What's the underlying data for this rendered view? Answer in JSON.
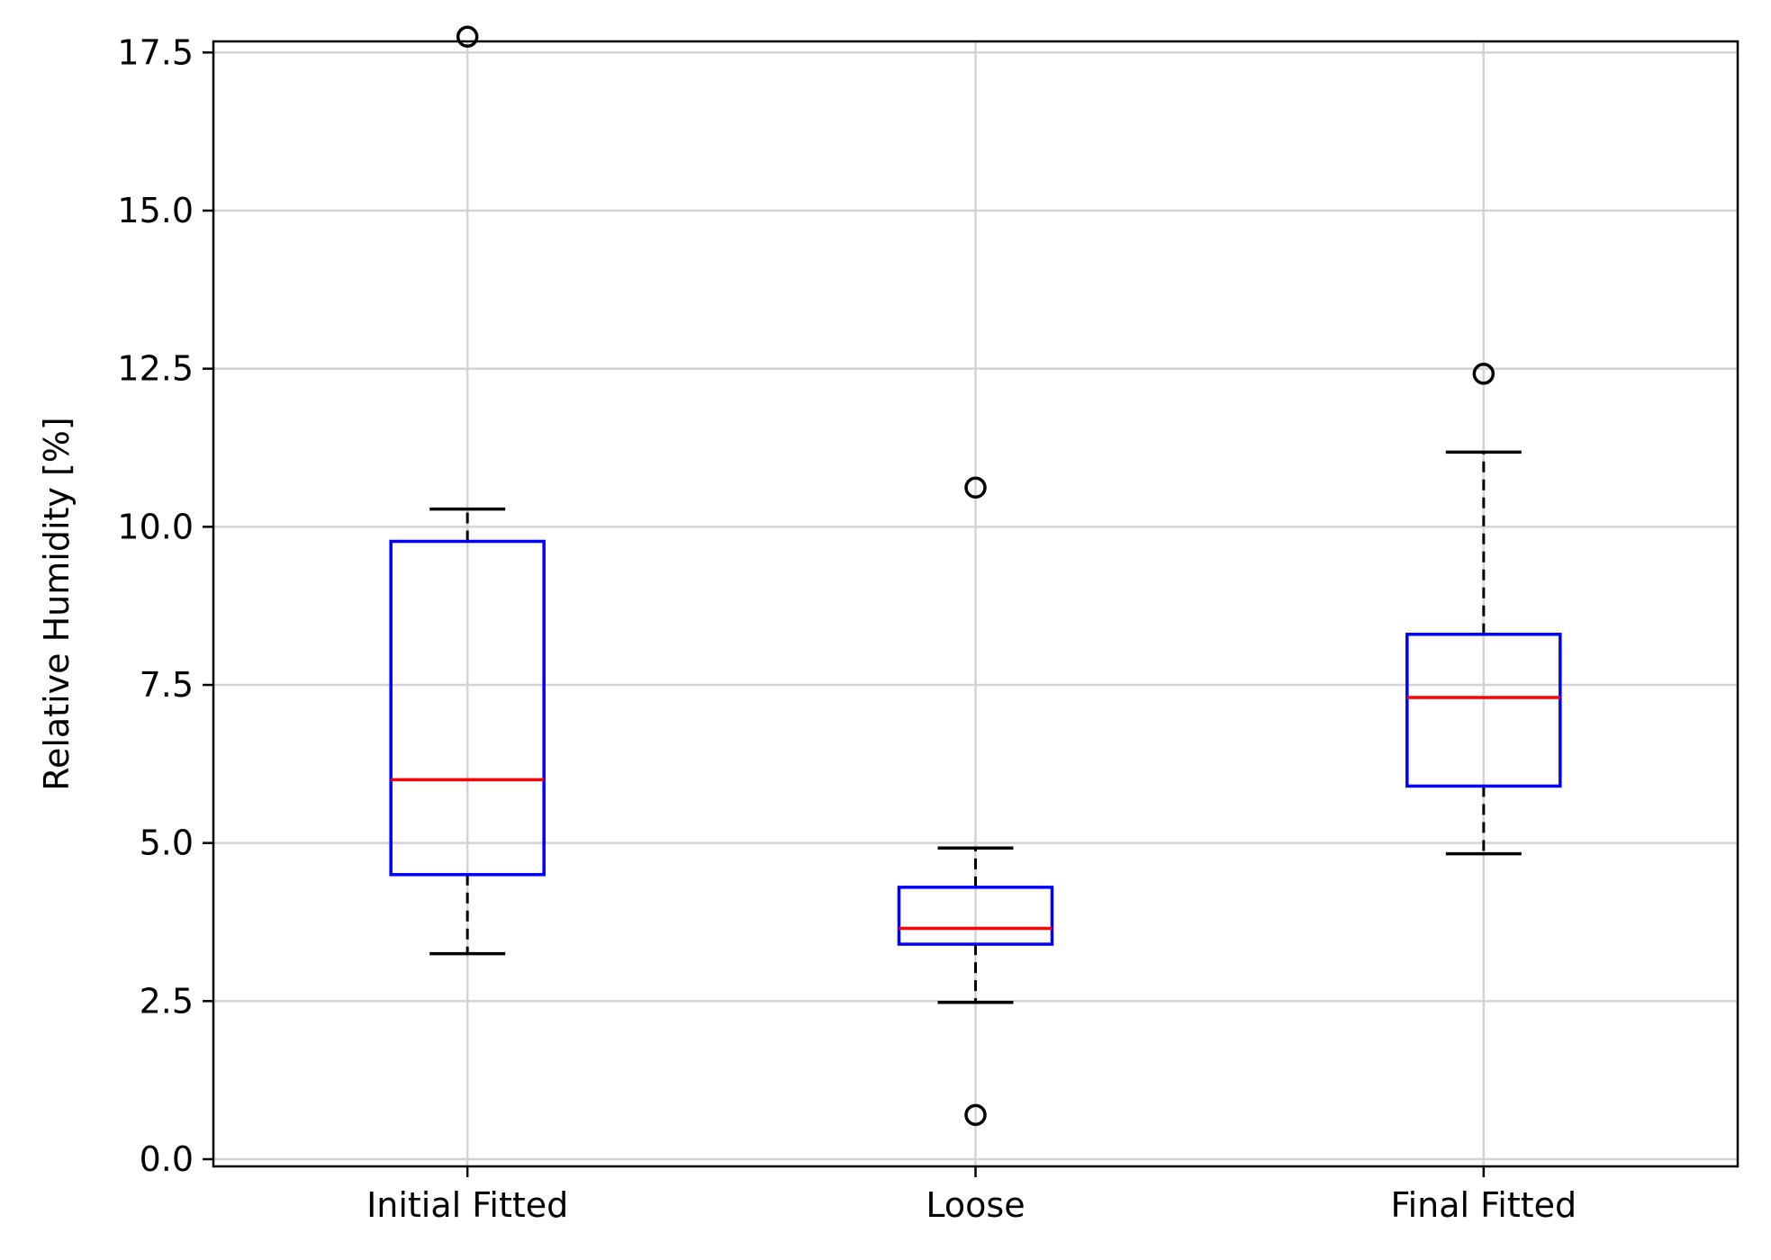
{
  "chart_data": {
    "type": "boxplot",
    "title": "",
    "xlabel": "",
    "ylabel": "Relative Humidity [%]",
    "ylim": [
      -0.25,
      18.6
    ],
    "yticks": [
      0.0,
      2.5,
      5.0,
      7.5,
      10.0,
      12.5,
      15.0,
      17.5
    ],
    "ytick_labels": [
      "0.0",
      "2.5",
      "5.0",
      "7.5",
      "10.0",
      "12.5",
      "15.0",
      "17.5"
    ],
    "grid": true,
    "categories": [
      "Initial Fitted",
      "Loose",
      "Final Fitted"
    ],
    "boxes": [
      {
        "category": "Initial Fitted",
        "whisker_low": 3.25,
        "q1": 4.5,
        "median": 6.0,
        "q3": 9.77,
        "whisker_high": 10.28,
        "outliers": [
          17.75
        ]
      },
      {
        "category": "Loose",
        "whisker_low": 2.48,
        "q1": 3.4,
        "median": 3.65,
        "q3": 4.3,
        "whisker_high": 4.92,
        "outliers": [
          10.62,
          0.7
        ]
      },
      {
        "category": "Final Fitted",
        "whisker_low": 4.83,
        "q1": 5.9,
        "median": 7.3,
        "q3": 8.3,
        "whisker_high": 11.18,
        "outliers": [
          12.42
        ]
      }
    ],
    "colors": {
      "box": "#0000ff",
      "median": "#ff0000",
      "whisker": "#000000",
      "grid": "#d3d3d3",
      "outlier": "#000000"
    }
  }
}
